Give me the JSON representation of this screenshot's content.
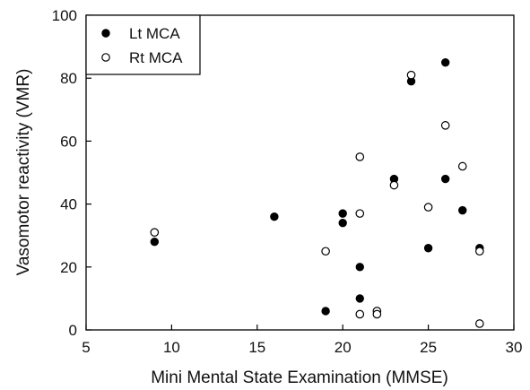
{
  "chart_data": {
    "type": "scatter",
    "xlabel": "Mini Mental State Examination (MMSE)",
    "ylabel": "Vasomotor reactivity (VMR)",
    "xlim": [
      5,
      30
    ],
    "ylim": [
      0,
      100
    ],
    "xticks": [
      5,
      10,
      15,
      20,
      25,
      30
    ],
    "yticks": [
      0,
      20,
      40,
      60,
      80,
      100
    ],
    "grid": false,
    "legend_position": "top-left",
    "series": [
      {
        "name": "Lt MCA",
        "marker": "filled-circle",
        "color": "#000000",
        "points": [
          [
            9,
            28
          ],
          [
            16,
            36
          ],
          [
            19,
            6
          ],
          [
            20,
            37
          ],
          [
            20,
            34
          ],
          [
            21,
            20
          ],
          [
            21,
            10
          ],
          [
            23,
            48
          ],
          [
            24,
            79
          ],
          [
            25,
            26
          ],
          [
            26,
            85
          ],
          [
            26,
            48
          ],
          [
            27,
            38
          ],
          [
            28,
            26
          ]
        ]
      },
      {
        "name": "Rt MCA",
        "marker": "open-circle",
        "color": "#000000",
        "points": [
          [
            9,
            31
          ],
          [
            19,
            25
          ],
          [
            21,
            55
          ],
          [
            21,
            37
          ],
          [
            21,
            5
          ],
          [
            22,
            6
          ],
          [
            22,
            5
          ],
          [
            23,
            46
          ],
          [
            24,
            81
          ],
          [
            25,
            39
          ],
          [
            26,
            65
          ],
          [
            27,
            52
          ],
          [
            28,
            25
          ],
          [
            28,
            2
          ]
        ]
      }
    ]
  }
}
